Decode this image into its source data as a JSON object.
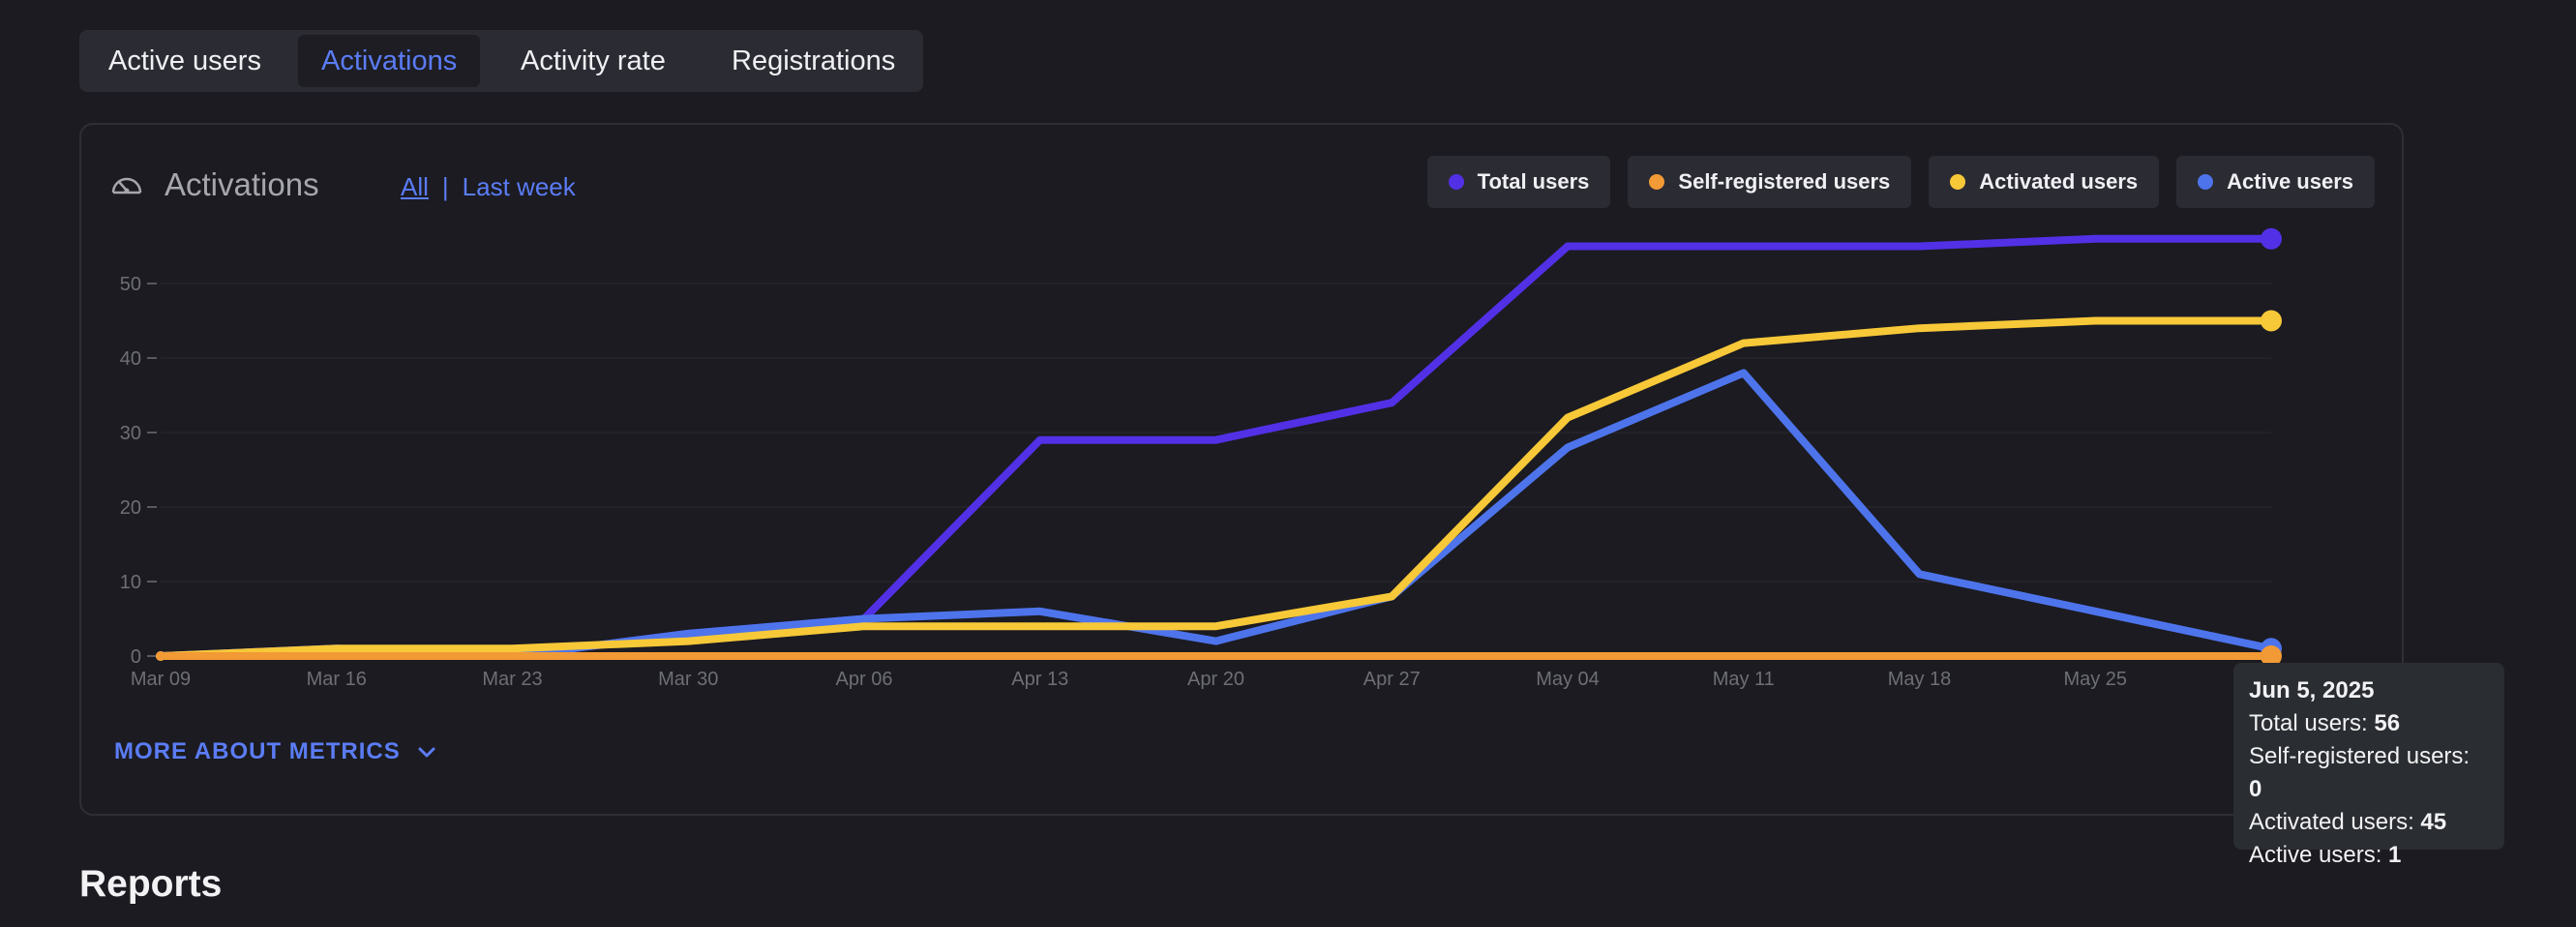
{
  "tabs": [
    {
      "label": "Active users",
      "active": false
    },
    {
      "label": "Activations",
      "active": true
    },
    {
      "label": "Activity rate",
      "active": false
    },
    {
      "label": "Registrations",
      "active": false
    }
  ],
  "card": {
    "icon": "gauge-icon",
    "title": "Activations",
    "filter_all": "All",
    "filter_separator": "|",
    "filter_last_week": "Last week",
    "more_link": "MORE ABOUT METRICS"
  },
  "legend": [
    {
      "label": "Total users",
      "color": "#5230e6"
    },
    {
      "label": "Self-registered users",
      "color": "#f29a35"
    },
    {
      "label": "Activated users",
      "color": "#f7c838"
    },
    {
      "label": "Active users",
      "color": "#4e74ec"
    }
  ],
  "chart_data": {
    "type": "line",
    "x": [
      "Mar 09",
      "Mar 16",
      "Mar 23",
      "Mar 30",
      "Apr 06",
      "Apr 13",
      "Apr 20",
      "Apr 27",
      "May 04",
      "May 11",
      "May 18",
      "May 25",
      "Jun 5, 2025"
    ],
    "x_tick_labels": [
      "Mar 09",
      "Mar 16",
      "Mar 23",
      "Mar 30",
      "Apr 06",
      "Apr 13",
      "Apr 20",
      "Apr 27",
      "May 04",
      "May 11",
      "May 18",
      "May 25"
    ],
    "ylim": [
      0,
      55
    ],
    "y_ticks": [
      0,
      10,
      20,
      30,
      40,
      50
    ],
    "grid": true,
    "legend_position": "top-right",
    "series": [
      {
        "name": "Total users",
        "color": "#5230e6",
        "values": [
          0,
          1,
          0,
          3,
          5,
          29,
          29,
          34,
          55,
          55,
          55,
          56,
          56
        ]
      },
      {
        "name": "Self-registered users",
        "color": "#f29a35",
        "values": [
          0,
          0,
          0,
          0,
          0,
          0,
          0,
          0,
          0,
          0,
          0,
          0,
          0
        ]
      },
      {
        "name": "Activated users",
        "color": "#f7c838",
        "values": [
          0,
          1,
          1,
          2,
          4,
          4,
          4,
          8,
          32,
          42,
          44,
          45,
          45
        ]
      },
      {
        "name": "Active users",
        "color": "#4e74ec",
        "values": [
          0,
          1,
          0,
          3,
          5,
          6,
          2,
          8,
          28,
          38,
          11,
          6,
          1
        ]
      }
    ]
  },
  "tooltip": {
    "date": "Jun 5, 2025",
    "rows": [
      {
        "label": "Total users: ",
        "value": "56"
      },
      {
        "label": "Self-registered users: ",
        "value": "0"
      },
      {
        "label": "Activated users: ",
        "value": "45"
      },
      {
        "label": "Active users: ",
        "value": "1"
      }
    ]
  },
  "reports_heading": "Reports"
}
